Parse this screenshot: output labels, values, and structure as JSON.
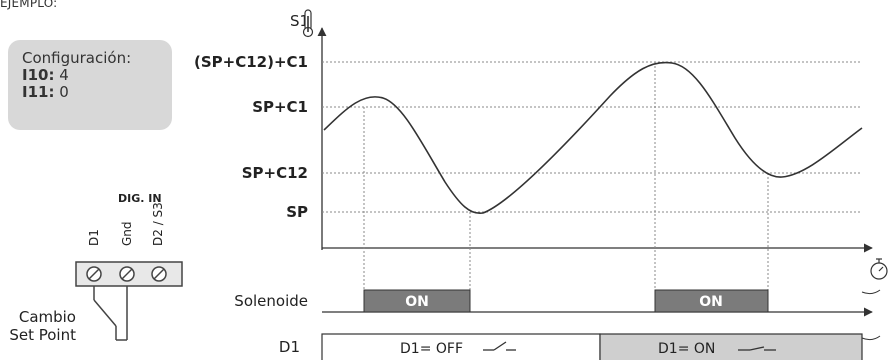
{
  "heading": "EJEMPLO:",
  "config": {
    "title": "Configuración:",
    "lines": [
      {
        "key": "I10:",
        "value": "4"
      },
      {
        "key": "I11:",
        "value": "0"
      }
    ]
  },
  "terminal": {
    "label": "DIG. IN",
    "pins": [
      "D1",
      "Gnd",
      "D2 / S3"
    ],
    "switch_label_line1": "Cambio",
    "switch_label_line2": "Set Point"
  },
  "graph": {
    "y_axis_label": "S1",
    "levels": [
      "(SP+C12)+C1",
      "SP+C1",
      "SP+C12",
      "SP"
    ],
    "x_axis_icon": "timer-icon",
    "thermometer_icon": "thermometer-icon"
  },
  "solenoide": {
    "label": "Solenoide",
    "pulses": [
      "ON",
      "ON"
    ]
  },
  "d1": {
    "label": "D1",
    "states": [
      "D1= OFF",
      "D1= ON"
    ]
  },
  "colors": {
    "on_fill": "#7b7b7b",
    "d1_on_fill": "#cfcfcf",
    "config_fill": "#d8d8d8",
    "line": "#333333"
  }
}
